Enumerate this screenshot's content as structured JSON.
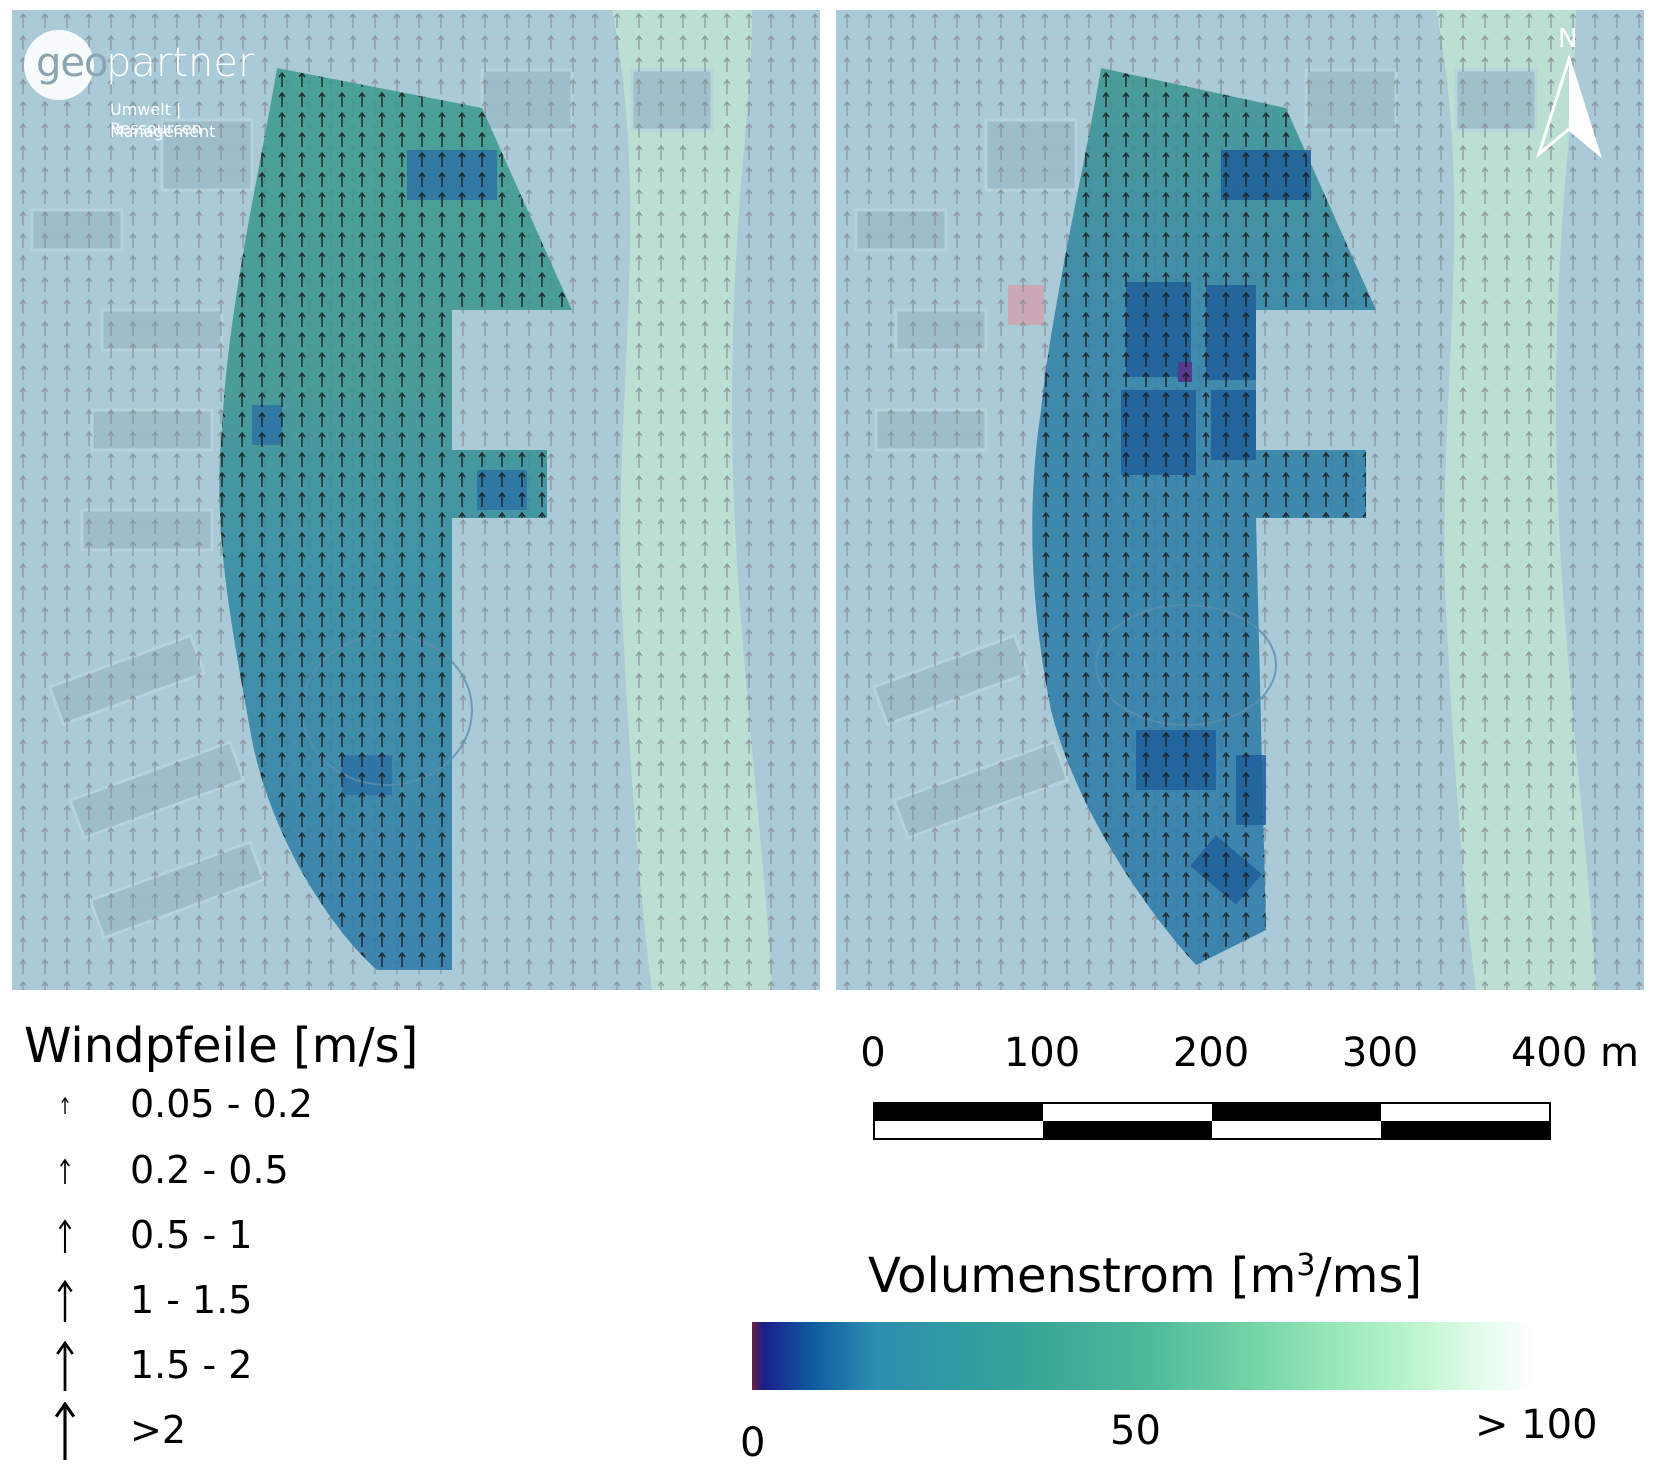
{
  "logo": {
    "brand_left": "geo",
    "brand_right": "partner",
    "line1": "Umwelt | Ressourcen",
    "line2": "Management"
  },
  "north_arrow": {
    "label": "N"
  },
  "wind_legend": {
    "title": "Windpfeile [m/s]",
    "classes": [
      {
        "label": "0.05 - 0.2",
        "level": 1
      },
      {
        "label": "0.2 - 0.5",
        "level": 2
      },
      {
        "label": "0.5 - 1",
        "level": 3
      },
      {
        "label": "1 - 1.5",
        "level": 4
      },
      {
        "label": "1.5 - 2",
        "level": 5
      },
      {
        "label": ">2",
        "level": 6
      }
    ]
  },
  "scale_bar": {
    "ticks": [
      "0",
      "100",
      "200",
      "300",
      "400 m"
    ]
  },
  "volume_legend": {
    "title_main": "Volumenstrom [m",
    "title_sup": "3",
    "title_end": "/ms]",
    "min_label": "0",
    "mid_label": "50",
    "max_label": "> 100",
    "colors": [
      "#6a2140",
      "#1a1f8a",
      "#0f5ea0",
      "#2e8fb0",
      "#3aa896",
      "#6dd0a5",
      "#b8f5cc",
      "#ffffff"
    ]
  }
}
